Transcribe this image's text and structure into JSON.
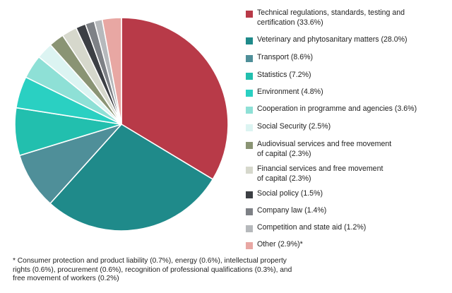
{
  "chart_data": {
    "type": "pie",
    "title": "",
    "slices": [
      {
        "label": "Technical regulations, standards, testing and certification (33.6%)",
        "value": 33.6,
        "color": "#b83a48"
      },
      {
        "label": "Veterinary and phytosanitary matters (28.0%)",
        "value": 28.0,
        "color": "#1f8a8a"
      },
      {
        "label": "Transport (8.6%)",
        "value": 8.6,
        "color": "#4f8f99"
      },
      {
        "label": "Statistics (7.2%)",
        "value": 7.2,
        "color": "#22bfae"
      },
      {
        "label": "Environment (4.8%)",
        "value": 4.8,
        "color": "#2ad0c2"
      },
      {
        "label": "Cooperation in programme and agencies (3.6%)",
        "value": 3.6,
        "color": "#8ee0d6"
      },
      {
        "label": "Social Security (2.5%)",
        "value": 2.5,
        "color": "#dcf4f2"
      },
      {
        "label": "Audiovisual services and free movement of capital (2.3%)",
        "value": 2.3,
        "color": "#8a9474"
      },
      {
        "label": "Financial services and free movement of capital (2.3%)",
        "value": 2.3,
        "color": "#d6d8cc"
      },
      {
        "label": "Social policy (1.5%)",
        "value": 1.5,
        "color": "#3c3f44"
      },
      {
        "label": "Company law (1.4%)",
        "value": 1.4,
        "color": "#7e8186"
      },
      {
        "label": "Competition and state aid (1.2%)",
        "value": 1.2,
        "color": "#b6b9bc"
      },
      {
        "label": "Other (2.9%)*",
        "value": 2.9,
        "color": "#e8a7a3"
      }
    ]
  },
  "legend": {
    "items": [
      {
        "line1": "Technical regulations, standards, testing and",
        "line2": "certification (33.6%)",
        "color": "#b83a48"
      },
      {
        "line1": "Veterinary and phytosanitary matters (28.0%)",
        "line2": "",
        "color": "#1f8a8a"
      },
      {
        "line1": "Transport (8.6%)",
        "line2": "",
        "color": "#4f8f99"
      },
      {
        "line1": "Statistics (7.2%)",
        "line2": "",
        "color": "#22bfae"
      },
      {
        "line1": "Environment (4.8%)",
        "line2": "",
        "color": "#2ad0c2"
      },
      {
        "line1": "Cooperation in programme and agencies (3.6%)",
        "line2": "",
        "color": "#8ee0d6"
      },
      {
        "line1": "Social Security (2.5%)",
        "line2": "",
        "color": "#dcf4f2"
      },
      {
        "line1": "Audiovisual services and free movement",
        "line2": "of capital (2.3%)",
        "color": "#8a9474"
      },
      {
        "line1": "Financial services and free movement",
        "line2": "of capital (2.3%)",
        "color": "#d6d8cc"
      },
      {
        "line1": "Social policy (1.5%)",
        "line2": "",
        "color": "#3c3f44"
      },
      {
        "line1": "Company law (1.4%)",
        "line2": "",
        "color": "#7e8186"
      },
      {
        "line1": "Competition and state aid (1.2%)",
        "line2": "",
        "color": "#b6b9bc"
      },
      {
        "line1": "Other (2.9%)*",
        "line2": "",
        "color": "#e8a7a3"
      }
    ]
  },
  "footnote": {
    "lines": [
      "* Consumer protection and product liability (0.7%), energy (0.6%), intellectual property",
      "rights (0.6%), procurement (0.6%), recognition of professional qualifications (0.3%), and",
      "free movement of workers (0.2%)"
    ]
  }
}
